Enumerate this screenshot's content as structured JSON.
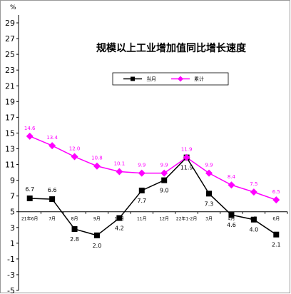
{
  "chart_data": {
    "type": "line",
    "title": "规模以上工业增加值同比增长速度",
    "unit": "%",
    "ylim": [
      -5,
      30
    ],
    "yticks": [
      -5,
      -3,
      -1,
      1,
      3,
      5,
      7,
      9,
      11,
      13,
      15,
      17,
      19,
      21,
      23,
      25,
      27,
      29
    ],
    "categories": [
      "21年6月",
      "7月",
      "8月",
      "9月",
      "10月",
      "11月",
      "12月",
      "22年1-2月",
      "3月",
      "4月",
      "5月",
      "6月"
    ],
    "legend_position": "top",
    "series": [
      {
        "name": "当月",
        "color": "#000000",
        "marker": "square",
        "values": [
          6.7,
          6.6,
          2.8,
          2.0,
          4.2,
          7.7,
          9.0,
          11.9,
          7.3,
          4.6,
          4.0,
          2.1
        ],
        "labels": [
          "6.7",
          "6.6",
          "2.8",
          "2.0",
          "4.2",
          "7.7",
          "9.0",
          "11.9",
          "7.3",
          "4.6",
          "4.0",
          "2.1"
        ]
      },
      {
        "name": "累计",
        "color": "#ff00ff",
        "marker": "diamond",
        "values": [
          14.6,
          13.4,
          12.0,
          10.8,
          10.1,
          9.9,
          9.9,
          11.9,
          9.9,
          8.4,
          7.5,
          6.5
        ],
        "labels": [
          "14.6",
          "13.4",
          "12.0",
          "10.8",
          "10.1",
          "9.9",
          "9.9",
          "11.9",
          "9.9",
          "8.4",
          "7.5",
          "6.5"
        ]
      }
    ]
  }
}
